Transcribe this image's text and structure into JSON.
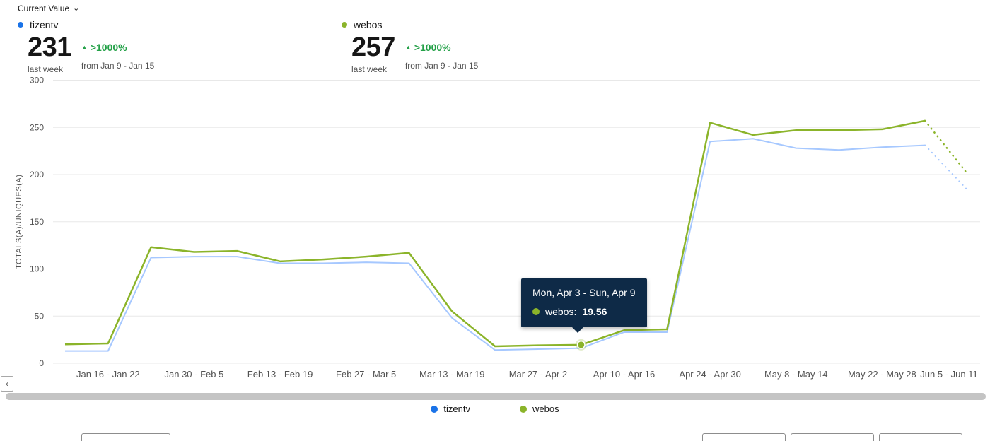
{
  "header": {
    "metric_selector_label": "Current Value"
  },
  "metrics": [
    {
      "name": "tizentv",
      "dot_color": "#1a73e8",
      "value": "231",
      "period": "last week",
      "change": ">1000%",
      "change_period": "from Jan 9 - Jan 15"
    },
    {
      "name": "webos",
      "dot_color": "#8bb42a",
      "value": "257",
      "period": "last week",
      "change": ">1000%",
      "change_period": "from Jan 9 - Jan 15"
    }
  ],
  "tooltip": {
    "title": "Mon, Apr 3 - Sun, Apr 9",
    "series_label": "webos:",
    "value": "19.56",
    "dot_color": "#8bb42a",
    "bg_color": "#0e2a47"
  },
  "legend": [
    {
      "label": "tizentv",
      "color": "#1a73e8"
    },
    {
      "label": "webos",
      "color": "#8bb42a"
    }
  ],
  "chart_data": {
    "type": "line",
    "title": "",
    "xlabel": "",
    "ylabel": "TOTALS(A)/UNIQUES(A)",
    "ylim": [
      0,
      300
    ],
    "yticks": [
      0,
      50,
      100,
      150,
      200,
      250,
      300
    ],
    "grid": true,
    "legend_position": "bottom",
    "x_tick_labels": [
      "Jan 16 - Jan 22",
      "Jan 30 - Feb 5",
      "Feb 13 - Feb 19",
      "Feb 27 - Mar 5",
      "Mar 13 - Mar 19",
      "Mar 27 - Apr 2",
      "Apr 10 - Apr 16",
      "Apr 24 - Apr 30",
      "May 8 - May 14",
      "May 22 - May 28",
      "Jun 5 - Jun 11"
    ],
    "x_tick_indices": [
      1,
      3,
      5,
      7,
      9,
      11,
      13,
      15,
      17,
      19,
      21
    ],
    "dashed_from_index": 20,
    "series": [
      {
        "name": "tizentv",
        "color": "#a6c8ff",
        "dot_color": "#1a73e8",
        "width": 2,
        "values": [
          13,
          13,
          112,
          113,
          113,
          106,
          106,
          107,
          106,
          48,
          14,
          15,
          16,
          33,
          33,
          235,
          238,
          228,
          226,
          229,
          231,
          183
        ]
      },
      {
        "name": "webos",
        "color": "#8bb42a",
        "dot_color": "#8bb42a",
        "width": 2.5,
        "values": [
          20,
          21,
          123,
          118,
          119,
          108,
          110,
          113,
          117,
          55,
          18,
          19,
          19.56,
          35,
          36,
          255,
          242,
          247,
          247,
          248,
          257,
          200
        ]
      }
    ],
    "highlight": {
      "series": "webos",
      "index": 12,
      "value": 19.56
    }
  }
}
